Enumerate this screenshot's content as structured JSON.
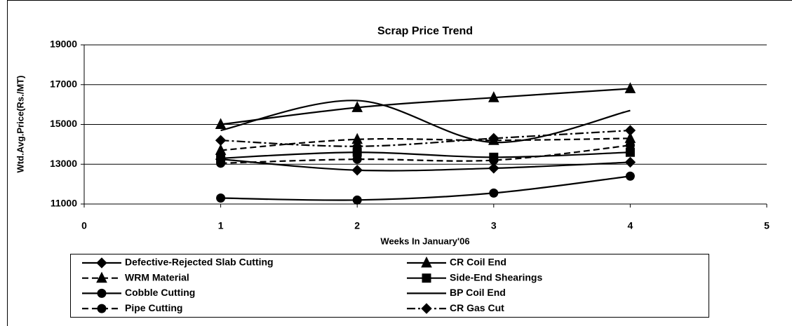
{
  "chart_data": {
    "type": "line",
    "title": "Scrap Price Trend",
    "x_label": "Weeks In January'06",
    "y_label": "Wtd.Avg.Price(Rs./MT)",
    "x": [
      1,
      2,
      3,
      4
    ],
    "xlim": [
      0,
      5
    ],
    "xticks": [
      0,
      1,
      2,
      3,
      4,
      5
    ],
    "ylim": [
      11000,
      19000
    ],
    "yticks": [
      11000,
      13000,
      15000,
      17000,
      19000
    ],
    "grid": true,
    "smooth": true,
    "series": [
      {
        "name": "Defective-Rejected Slab Cutting",
        "color": "#000000",
        "marker": "diamond",
        "dash": "solid",
        "values": [
          13250,
          12700,
          12800,
          13100
        ]
      },
      {
        "name": "CR Coil End",
        "color": "#000000",
        "marker": "triangle",
        "dash": "solid",
        "values": [
          15000,
          15850,
          16350,
          16800
        ]
      },
      {
        "name": "WRM Material",
        "color": "#000000",
        "marker": "triangle",
        "dash": "dashed",
        "values": [
          13700,
          14250,
          14200,
          14300
        ]
      },
      {
        "name": "Side-End Shearings",
        "color": "#000000",
        "marker": "square",
        "dash": "solid",
        "values": [
          13300,
          13600,
          13350,
          13600
        ]
      },
      {
        "name": "Cobble Cutting",
        "color": "#000000",
        "marker": "circle",
        "dash": "solid",
        "values": [
          11300,
          11200,
          11550,
          12400
        ]
      },
      {
        "name": "BP Coil End",
        "color": "#000000",
        "marker": "none",
        "dash": "solid",
        "values": [
          14700,
          16200,
          14100,
          15700
        ]
      },
      {
        "name": "Pipe Cutting",
        "color": "#000000",
        "marker": "circle",
        "dash": "dashed",
        "values": [
          13050,
          13250,
          13200,
          13950
        ]
      },
      {
        "name": "CR Gas Cut",
        "color": "#000000",
        "marker": "diamond",
        "dash": "dashdot",
        "values": [
          14200,
          13900,
          14300,
          14700
        ]
      }
    ]
  }
}
